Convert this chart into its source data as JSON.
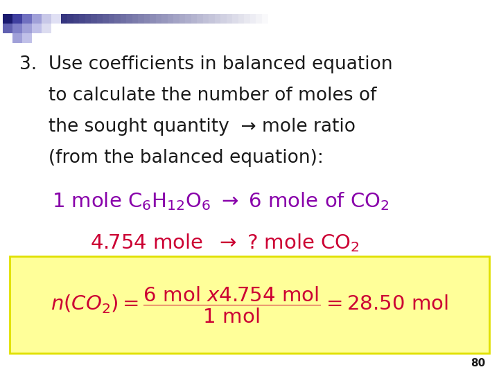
{
  "background_color": "#ffffff",
  "slide_number": "80",
  "text_color_black": "#1a1a1a",
  "text_color_purple": "#8800aa",
  "text_color_dark_red": "#cc0033",
  "yellow_box_color": "#ffff99",
  "yellow_box_edge": "#e0e000",
  "main_lines": [
    "3.  Use coefficients in balanced equation",
    "     to calculate the number of moles of",
    "     the sought quantity  → mole ratio",
    "     (from the balanced equation):"
  ],
  "font_size_main": 19,
  "font_size_chemical": 21,
  "font_size_formula": 21,
  "slide_num_fontsize": 11
}
